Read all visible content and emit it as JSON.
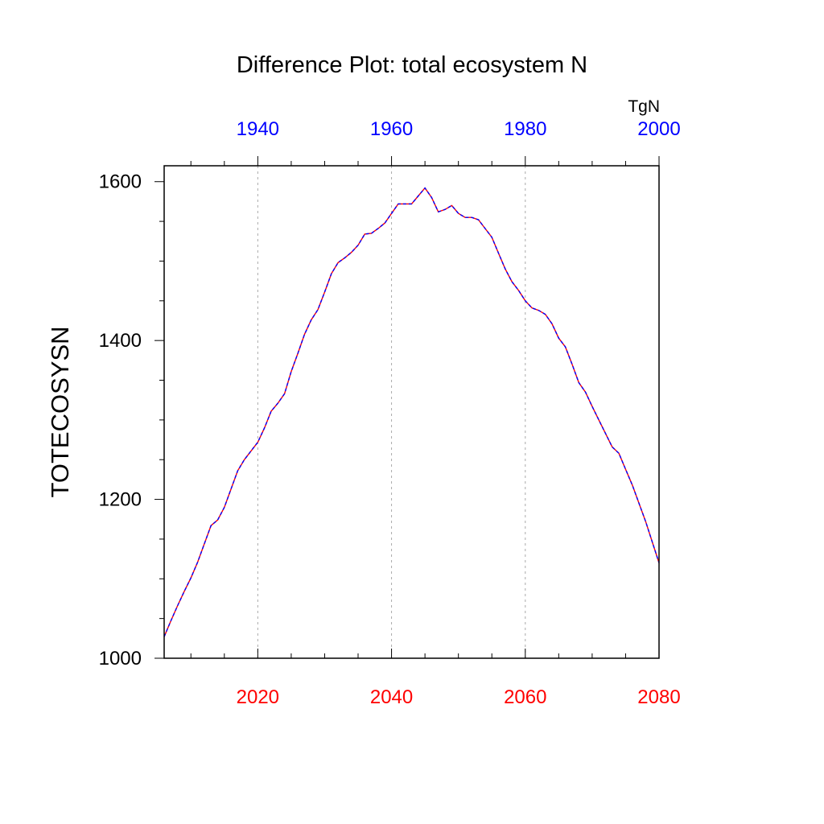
{
  "chart_data": {
    "type": "line",
    "title": "Difference Plot: total ecosystem N",
    "units": "TgN",
    "ylabel": "TOTECOSYSN",
    "xlabel": "",
    "xlim": [
      2006,
      2080
    ],
    "ylim": [
      1000,
      1620
    ],
    "yticks": [
      1000,
      1200,
      1400,
      1600
    ],
    "bottom_axis": {
      "ticks": [
        2020,
        2040,
        2060,
        2080
      ],
      "color": "#ff0000"
    },
    "top_axis": {
      "ticks": [
        1940,
        1960,
        1980,
        2000
      ],
      "color": "#0000ff",
      "lim": [
        1926,
        2000
      ]
    },
    "grid": "vertical dotted",
    "series": [
      {
        "color": "#ff0000",
        "overlay_color": "#0000ff",
        "style": "dashed",
        "x": [
          2006,
          2007,
          2008,
          2009,
          2010,
          2011,
          2012,
          2013,
          2014,
          2015,
          2016,
          2017,
          2018,
          2019,
          2020,
          2021,
          2022,
          2023,
          2024,
          2025,
          2026,
          2027,
          2028,
          2029,
          2030,
          2031,
          2032,
          2033,
          2034,
          2035,
          2036,
          2037,
          2038,
          2039,
          2040,
          2041,
          2042,
          2043,
          2044,
          2045,
          2046,
          2047,
          2048,
          2049,
          2050,
          2051,
          2052,
          2053,
          2054,
          2055,
          2056,
          2057,
          2058,
          2059,
          2060,
          2061,
          2062,
          2063,
          2064,
          2065,
          2066,
          2067,
          2068,
          2069,
          2070,
          2071,
          2072,
          2073,
          2074,
          2075,
          2076,
          2077,
          2078,
          2079,
          2080
        ],
        "values": [
          1027,
          1047,
          1066,
          1084,
          1101,
          1121,
          1144,
          1167,
          1174,
          1190,
          1213,
          1236,
          1250,
          1261,
          1272,
          1290,
          1311,
          1321,
          1333,
          1361,
          1384,
          1408,
          1426,
          1439,
          1461,
          1484,
          1498,
          1504,
          1511,
          1520,
          1534,
          1535,
          1541,
          1548,
          1560,
          1572,
          1572,
          1572,
          1582,
          1592,
          1580,
          1562,
          1565,
          1570,
          1560,
          1555,
          1555,
          1552,
          1541,
          1530,
          1510,
          1490,
          1474,
          1463,
          1450,
          1441,
          1438,
          1433,
          1421,
          1403,
          1392,
          1370,
          1347,
          1335,
          1317,
          1300,
          1283,
          1266,
          1258,
          1238,
          1218,
          1195,
          1172,
          1146,
          1120
        ]
      }
    ]
  }
}
